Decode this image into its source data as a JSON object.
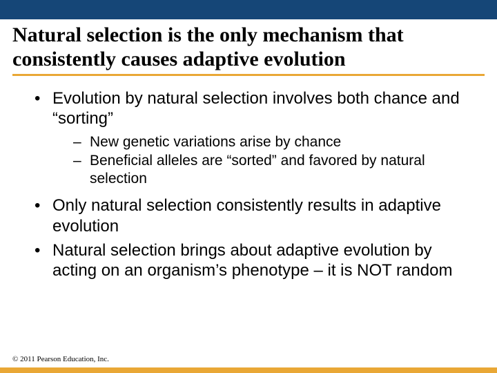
{
  "colors": {
    "top_bar": "#154677",
    "title_underline": "#e9a735",
    "bottom_bar": "#e9a735",
    "background": "#ffffff",
    "text": "#000000"
  },
  "typography": {
    "title_font": "Times New Roman",
    "title_size_pt": 30,
    "title_weight": "bold",
    "body_font": "Arial",
    "bullet_l1_size_pt": 24,
    "bullet_l2_size_pt": 21,
    "footer_font": "Times New Roman",
    "footer_size_pt": 11
  },
  "title": "Natural selection is the only mechanism that consistently causes adaptive evolution",
  "bullets": {
    "b1": "Evolution by natural selection involves both chance and “sorting”",
    "b1_sub1": "New genetic variations arise by chance",
    "b1_sub2": "Beneficial alleles are “sorted” and favored by natural selection",
    "b2": "Only natural selection consistently results in adaptive evolution",
    "b3": "Natural selection brings about adaptive evolution by acting on an organism’s phenotype – it is NOT random"
  },
  "footer": "© 2011 Pearson Education, Inc."
}
